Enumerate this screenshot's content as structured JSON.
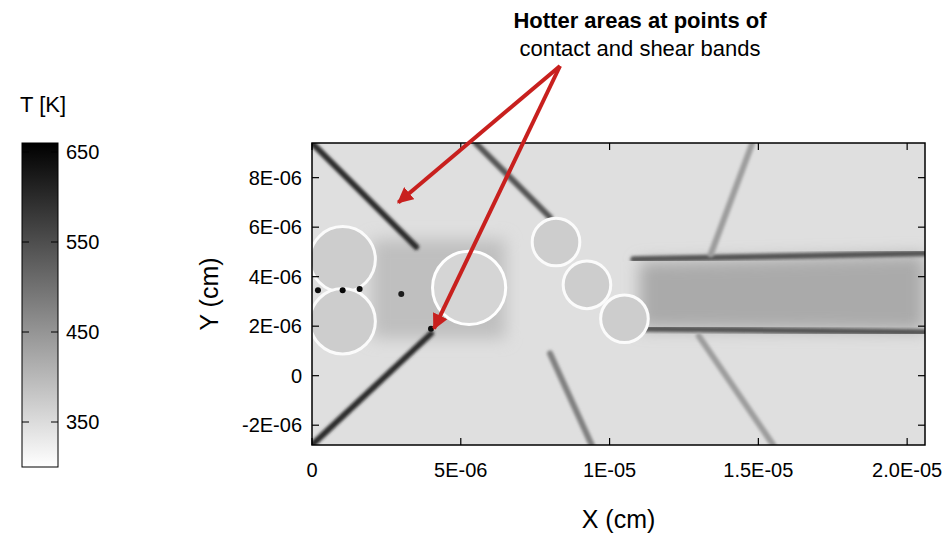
{
  "chart_data": {
    "type": "heatmap",
    "x_label": "X (cm)",
    "y_label": "Y (cm)",
    "xlim": [
      0,
      2.06e-05
    ],
    "ylim": [
      -2.8e-06,
      9.4e-06
    ],
    "xticks": [
      0,
      {
        "value": 5e-06,
        "label": "5E-06"
      },
      {
        "value": 1e-05,
        "label": "1E-05"
      },
      {
        "value": 1.5e-05,
        "label": "1.5E-05"
      },
      {
        "value": 2e-05,
        "label": "2.0E-05"
      }
    ],
    "yticks": [
      {
        "value": -2e-06,
        "label": "-2E-06"
      },
      0,
      {
        "value": 2e-06,
        "label": "2E-06"
      },
      {
        "value": 4e-06,
        "label": "4E-06"
      },
      {
        "value": 6e-06,
        "label": "6E-06"
      },
      {
        "value": 8e-06,
        "label": "8E-06"
      }
    ],
    "colorbar": {
      "label": "T [K]",
      "range": [
        300,
        660
      ],
      "ticks": [
        350,
        450,
        550,
        650
      ]
    },
    "field": {
      "background": 345,
      "regions": [
        {
          "x": [
            1.1e-05,
            2.06e-05,
            2.06e-05,
            1.1e-05
          ],
          "y": [
            4.6e-06,
            4.9e-06,
            1.8e-06,
            1.9e-06
          ],
          "T": 420
        },
        {
          "x": [
            2e-06,
            6.5e-06,
            6.5e-06,
            2e-06
          ],
          "y": [
            5.5e-06,
            5.5e-06,
            1.5e-06,
            1.5e-06
          ],
          "T": 390
        }
      ],
      "bands": [
        {
          "x": [
            0,
            3.5e-06
          ],
          "y": [
            9.4e-06,
            5.2e-06
          ],
          "T": 600
        },
        {
          "x": [
            0,
            4e-06
          ],
          "y": [
            -2.8e-06,
            1.7e-06
          ],
          "T": 600
        },
        {
          "x": [
            5.5e-06,
            8e-06
          ],
          "y": [
            9.4e-06,
            6.4e-06
          ],
          "T": 540
        },
        {
          "x": [
            1.08e-05,
            2.06e-05
          ],
          "y": [
            4.7e-06,
            4.95e-06
          ],
          "T": 540
        },
        {
          "x": [
            1.1e-05,
            2.06e-05
          ],
          "y": [
            1.9e-06,
            1.75e-06
          ],
          "T": 540
        },
        {
          "x": [
            8e-06,
            9.4e-06
          ],
          "y": [
            9e-07,
            -2.8e-06
          ],
          "T": 480
        },
        {
          "x": [
            1.34e-05,
            1.48e-05
          ],
          "y": [
            4.9e-06,
            9.4e-06
          ],
          "T": 440
        },
        {
          "x": [
            1.3e-05,
            1.55e-05
          ],
          "y": [
            1.6e-06,
            -2.8e-06
          ],
          "T": 440
        }
      ],
      "particles": [
        {
          "x": 1.03e-06,
          "y": 4.7e-06,
          "r": 1.1e-06,
          "T": 370,
          "rim_T": 305
        },
        {
          "x": 1.03e-06,
          "y": 2.2e-06,
          "r": 1.1e-06,
          "T": 370,
          "rim_T": 305
        },
        {
          "x": 5.28e-06,
          "y": 3.55e-06,
          "r": 1.23e-06,
          "T": 360,
          "rim_T": 300
        },
        {
          "x": 8.2e-06,
          "y": 5.4e-06,
          "r": 8e-07,
          "T": 370,
          "rim_T": 305
        },
        {
          "x": 9.24e-06,
          "y": 3.67e-06,
          "r": 8e-07,
          "T": 370,
          "rim_T": 305
        },
        {
          "x": 1.05e-05,
          "y": 2.3e-06,
          "r": 8e-07,
          "T": 370,
          "rim_T": 305
        }
      ],
      "hot_spots": {
        "x": [
          2e-07,
          1.03e-06,
          1.6e-06,
          3e-06,
          4e-06
        ],
        "y": [
          3.45e-06,
          3.45e-06,
          3.5e-06,
          3.3e-06,
          1.9e-06
        ],
        "T": [
          640,
          650,
          640,
          620,
          640
        ]
      }
    },
    "annotation": {
      "lines": [
        "Hotter areas at points of",
        "contact and shear bands"
      ],
      "targets": {
        "x": [
          2.9e-06,
          4.1e-06
        ],
        "y": [
          7e-06,
          1.9e-06
        ]
      }
    }
  }
}
